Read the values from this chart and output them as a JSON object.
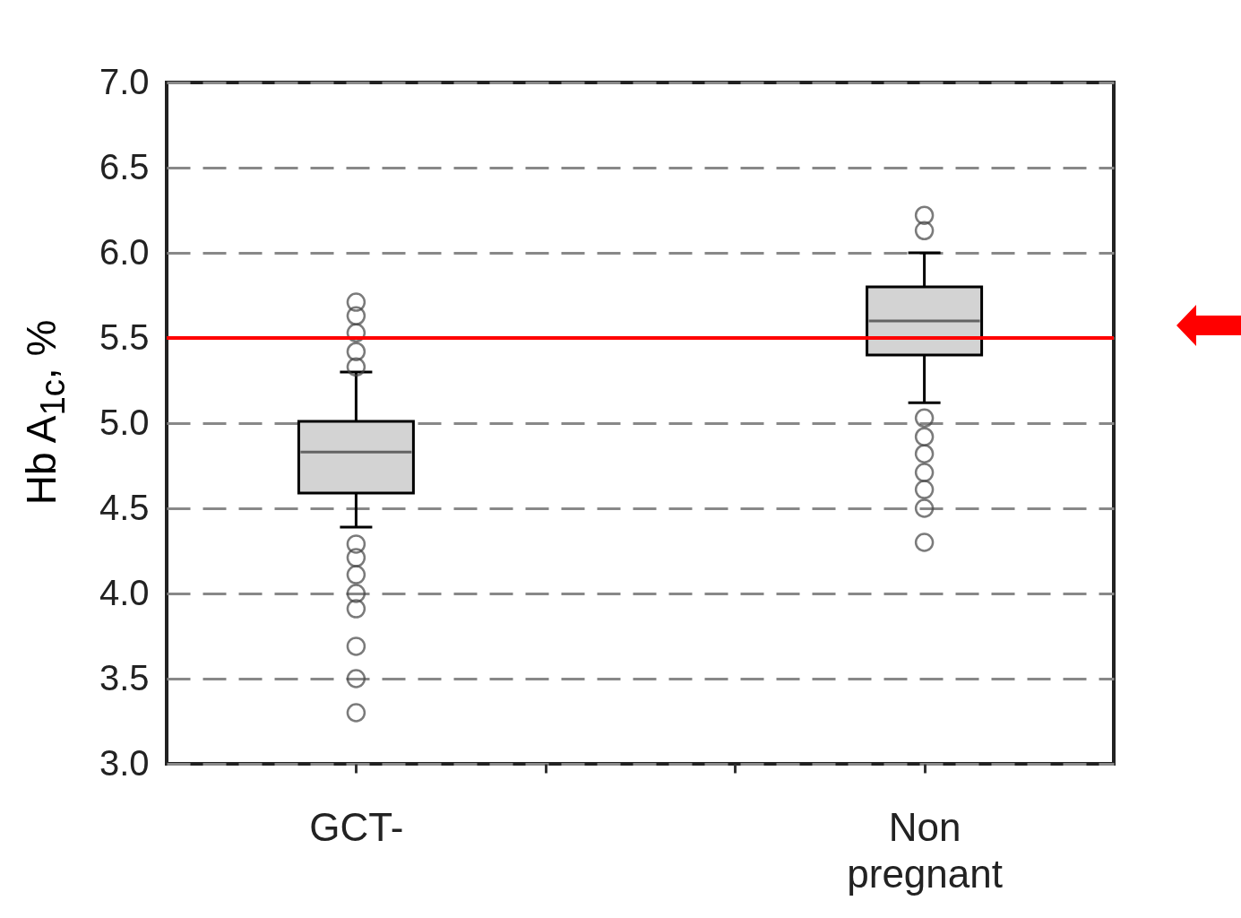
{
  "chart_data": {
    "type": "box",
    "ylabel": "Hb A$_{1c}$, %",
    "categories": [
      "GCT-",
      null,
      null,
      "Non pregnant"
    ],
    "boxes": [
      {
        "low": 4.39,
        "q1": 4.59,
        "median": 4.83,
        "q3": 5.01,
        "high": 5.3,
        "outliers": [
          5.33,
          5.42,
          5.53,
          5.63,
          5.71,
          4.29,
          4.21,
          4.11,
          4.0,
          3.91,
          3.69,
          3.5,
          3.3
        ]
      },
      null,
      null,
      {
        "low": 5.12,
        "q1": 5.4,
        "median": 5.6,
        "q3": 5.8,
        "high": 6.0,
        "outliers": [
          6.13,
          6.22,
          5.03,
          4.92,
          4.82,
          4.71,
          4.61,
          4.5,
          4.3
        ]
      }
    ],
    "color": "#d3d3d3",
    "ylim": [
      3,
      7
    ],
    "yticks": [
      {
        "value": 3,
        "label": "3.0"
      },
      {
        "value": 3.5,
        "label": "3.5"
      },
      {
        "value": 4,
        "label": "4.0"
      },
      {
        "value": 4.5,
        "label": "4.5"
      },
      {
        "value": 5,
        "label": "5.0"
      },
      {
        "value": 5.5,
        "label": "5.5"
      },
      {
        "value": 6,
        "label": "6.0"
      },
      {
        "value": 6.5,
        "label": "6.5"
      },
      {
        "value": 7,
        "label": "7.0"
      }
    ],
    "grid": "y",
    "marker": "circle",
    "ref_lines": [
      {
        "axis": "y",
        "value": 5.5,
        "color": "#ff0000"
      }
    ]
  }
}
